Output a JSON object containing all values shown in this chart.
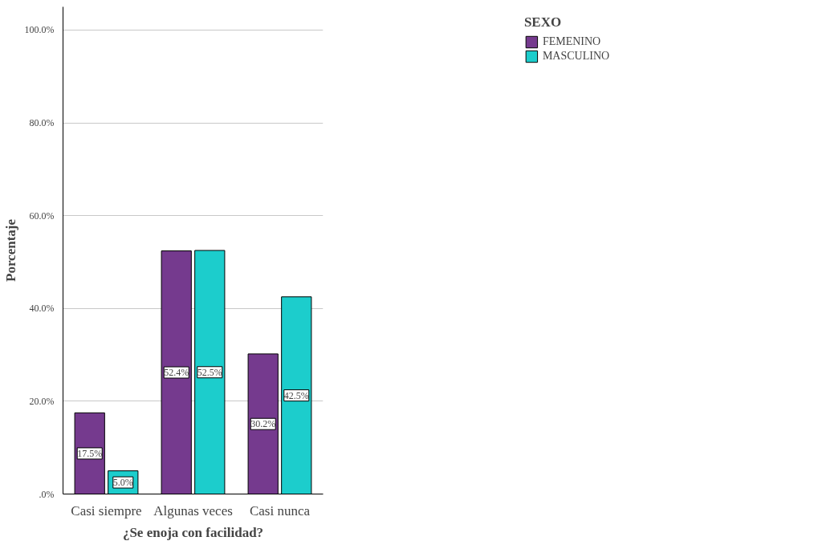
{
  "chart_data": {
    "type": "bar",
    "xlabel": "¿Se enoja con facilidad?",
    "ylabel": "Porcentaje",
    "legend_title": "SEXO",
    "categories": [
      "Casi siempre",
      "Algunas veces",
      "Casi nunca"
    ],
    "series": [
      {
        "name": "FEMENINO",
        "color": "#753a8e",
        "values": [
          17.5,
          52.4,
          30.2
        ],
        "value_labels": [
          "17.5%",
          "52.4%",
          "30.2%"
        ]
      },
      {
        "name": "MASCULINO",
        "color": "#1ccdcc",
        "values": [
          5.0,
          52.5,
          42.5
        ],
        "value_labels": [
          "5.0%",
          "52.5%",
          "42.5%"
        ]
      }
    ],
    "ylim": [
      0,
      105
    ],
    "yticks": [
      {
        "value": 0,
        "label": ".0%"
      },
      {
        "value": 20,
        "label": "20.0%"
      },
      {
        "value": 40,
        "label": "40.0%"
      },
      {
        "value": 60,
        "label": "60.0%"
      },
      {
        "value": 80,
        "label": "80.0%"
      },
      {
        "value": 100,
        "label": "100.0%"
      }
    ],
    "grid": "y",
    "legend": "top right"
  }
}
